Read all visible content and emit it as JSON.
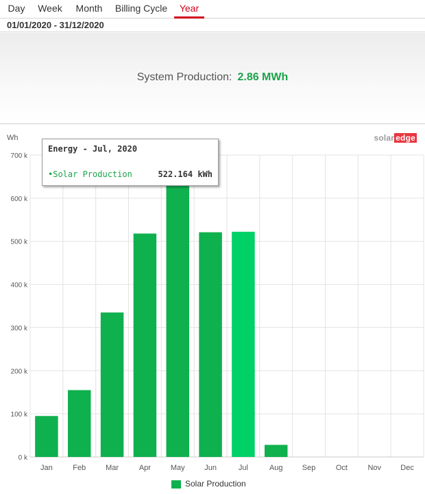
{
  "tabs": [
    {
      "label": "Day"
    },
    {
      "label": "Week"
    },
    {
      "label": "Month"
    },
    {
      "label": "Billing Cycle"
    },
    {
      "label": "Year",
      "active": true
    }
  ],
  "date_range": "01/01/2020 - 31/12/2020",
  "summary": {
    "label": "System Production:",
    "value": "2.86 MWh"
  },
  "logo": {
    "text": "solar",
    "highlight": "edge"
  },
  "tooltip": {
    "title": "Energy - Jul, 2020",
    "series_label": "•Solar Production",
    "value": "522.164 kWh"
  },
  "colors": {
    "accent": "#d0021b",
    "bar": "#0fb04e",
    "bar_highlight": "#00d166",
    "value_green": "#1aa34a"
  },
  "chart_data": {
    "type": "bar",
    "title": "",
    "ylabel": "Wh",
    "xlabel": "",
    "ylim": [
      0,
      700000
    ],
    "ytick_values": [
      0,
      100000,
      200000,
      300000,
      400000,
      500000,
      600000,
      700000
    ],
    "yticks": [
      "0 k",
      "100 k",
      "200 k",
      "300 k",
      "400 k",
      "500 k",
      "600 k",
      "700 k"
    ],
    "categories": [
      "Jan",
      "Feb",
      "Mar",
      "Apr",
      "May",
      "Jun",
      "Jul",
      "Aug",
      "Sep",
      "Oct",
      "Nov",
      "Dec"
    ],
    "series": [
      {
        "name": "Solar Production",
        "values": [
          95000,
          155000,
          335000,
          518000,
          676000,
          521000,
          522164,
          28000,
          null,
          null,
          null,
          null
        ]
      }
    ],
    "highlighted_category": "Jul",
    "grid": true,
    "legend": "bottom-center"
  }
}
